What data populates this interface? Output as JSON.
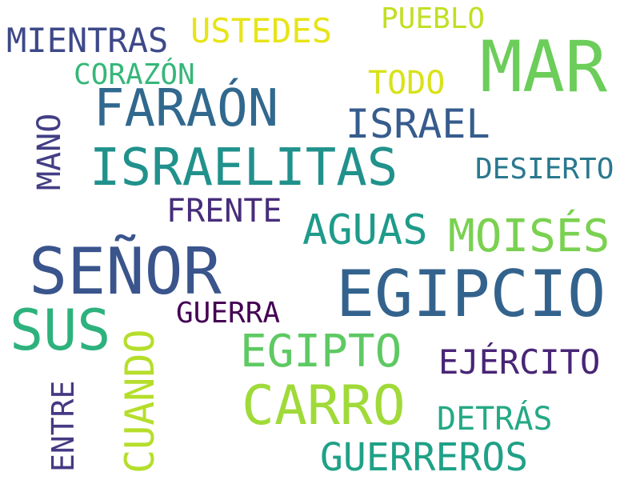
{
  "word_cloud": {
    "words": [
      {
        "text": "MAR",
        "color": "#6ccd5a"
      },
      {
        "text": "EGIPCIO",
        "color": "#33638d"
      },
      {
        "text": "SEÑOR",
        "color": "#3a548c"
      },
      {
        "text": "ISRAELITAS",
        "color": "#21918c"
      },
      {
        "text": "FARAÓN",
        "color": "#31688e"
      },
      {
        "text": "CARRO",
        "color": "#a0da39"
      },
      {
        "text": "SUS",
        "color": "#2db27d"
      },
      {
        "text": "EGIPTO",
        "color": "#5ec962"
      },
      {
        "text": "MOISÉS",
        "color": "#7ad151"
      },
      {
        "text": "GUERREROS",
        "color": "#1fa187"
      },
      {
        "text": "ISRAEL",
        "color": "#365c8d"
      },
      {
        "text": "AGUAS",
        "color": "#1e9b8a"
      },
      {
        "text": "EJÉRCITO",
        "color": "#482576"
      },
      {
        "text": "CUANDO",
        "color": "#b5de2b"
      },
      {
        "text": "MIENTRAS",
        "color": "#3e4989"
      },
      {
        "text": "USTEDES",
        "color": "#e7e419"
      },
      {
        "text": "FRENTE",
        "color": "#472d7b"
      },
      {
        "text": "DETRÁS",
        "color": "#26a985"
      },
      {
        "text": "DESIERTO",
        "color": "#2a788e"
      },
      {
        "text": "MANO",
        "color": "#433e85"
      },
      {
        "text": "TODO",
        "color": "#d8e219"
      },
      {
        "text": "PUEBLO",
        "color": "#c2df23"
      },
      {
        "text": "CORAZÓN",
        "color": "#35b779"
      },
      {
        "text": "GUERRA",
        "color": "#440154"
      },
      {
        "text": "ENTRE",
        "color": "#443a83"
      }
    ]
  }
}
